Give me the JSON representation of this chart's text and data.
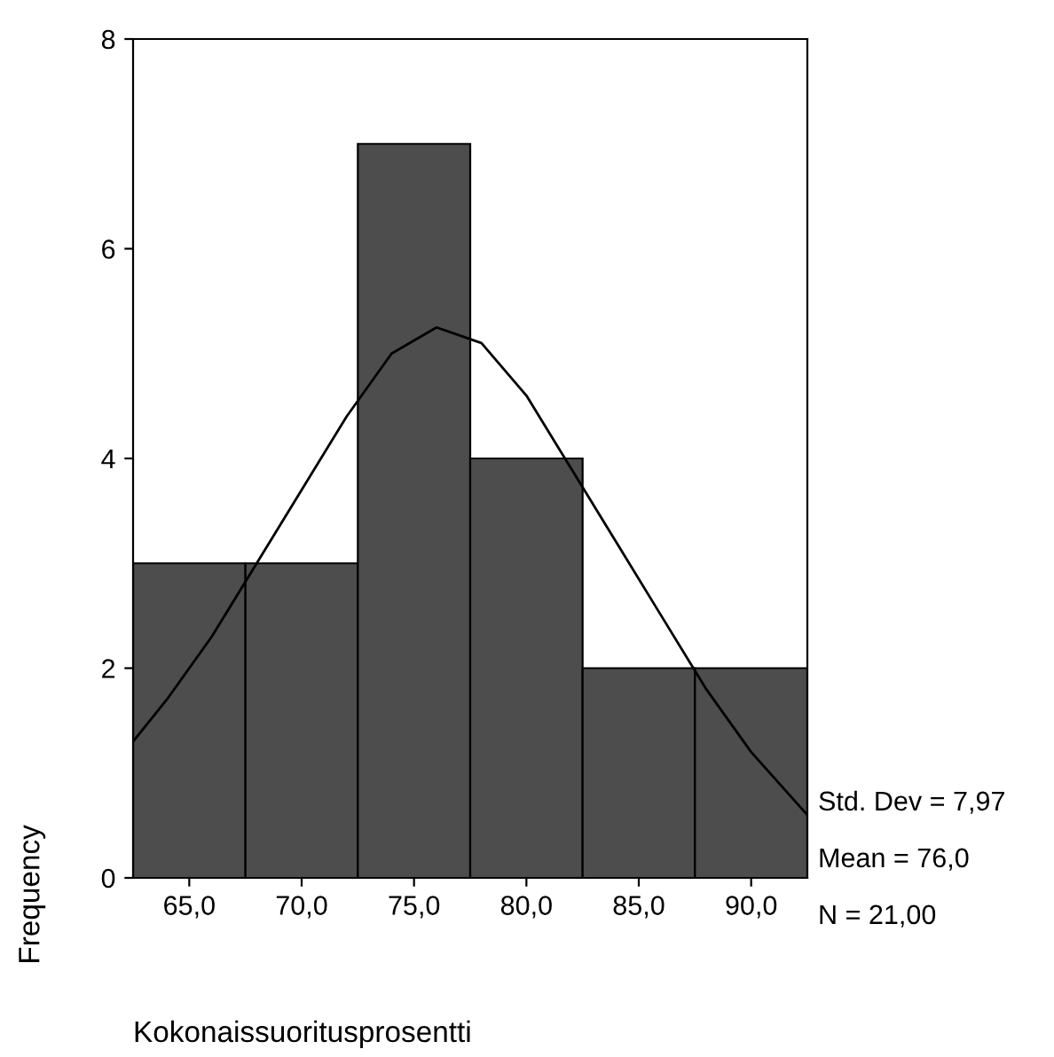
{
  "chart_data": {
    "type": "histogram",
    "xlabel": "Kokonaissuoritusprosentti",
    "ylabel": "Frequency",
    "bins": [
      62.5,
      67.5,
      72.5,
      77.5,
      82.5,
      87.5,
      92.5
    ],
    "values": [
      3,
      3,
      7,
      4,
      2,
      2
    ],
    "color": "#4d4d4d",
    "series": [
      {
        "type": "line",
        "color": "#000000",
        "x": [
          62.5,
          64,
          66,
          68,
          70,
          72,
          74,
          76,
          78,
          80,
          82,
          84,
          86,
          88,
          90,
          92.5
        ],
        "values": [
          1.3,
          1.7,
          2.3,
          3.0,
          3.7,
          4.4,
          5.0,
          5.25,
          5.1,
          4.6,
          3.9,
          3.2,
          2.5,
          1.8,
          1.2,
          0.6
        ]
      }
    ],
    "xlim": [
      62.5,
      92.5
    ],
    "ylim": [
      0,
      8
    ],
    "xticks": [
      {
        "value": 65,
        "label": "65,0"
      },
      {
        "value": 70,
        "label": "70,0"
      },
      {
        "value": 75,
        "label": "75,0"
      },
      {
        "value": 80,
        "label": "80,0"
      },
      {
        "value": 85,
        "label": "85,0"
      },
      {
        "value": 90,
        "label": "90,0"
      }
    ],
    "yticks": [
      0,
      2,
      4,
      6,
      8
    ],
    "grid": false,
    "legend": false,
    "annotations": [
      "Std. Dev = 7,97",
      "Mean = 76,0",
      "N = 21,00"
    ]
  }
}
